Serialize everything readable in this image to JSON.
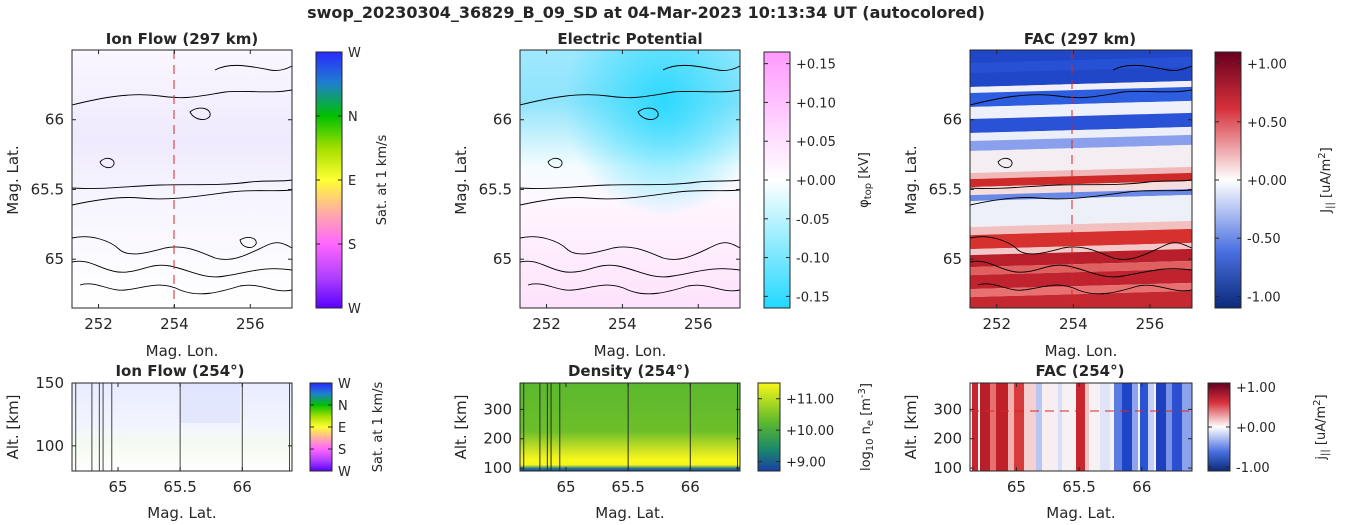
{
  "figure": {
    "title": "swop_20230304_36829_B_09_SD at 04-Mar-2023 10:13:34 UT (autocolored)"
  },
  "colors": {
    "contour": "#000000",
    "marker_line": "#d62728",
    "ion_flow_background": "#ffffff",
    "density_green": "#5bb82d",
    "density_yellow": "#f2f21e",
    "density_blue": "#1a3fa6"
  },
  "chart_data": [
    {
      "id": "ion-flow-map",
      "type": "heatmap",
      "title": "Ion Flow (297 km)",
      "xlabel": "Mag. Lon.",
      "ylabel": "Mag. Lat.",
      "xlim": [
        251.3,
        257.1
      ],
      "ylim": [
        64.65,
        66.5
      ],
      "xticks": [
        "252",
        "254",
        "256"
      ],
      "xtick_values": [
        252,
        254,
        256
      ],
      "yticks": [
        "65",
        "65.5",
        "66"
      ],
      "ytick_values": [
        65,
        65.5,
        66
      ],
      "marker_lon": 254,
      "colorbar": {
        "label": "Sat. at 1 km/s",
        "ticks": [
          "W",
          "N",
          "E",
          "S",
          "W"
        ],
        "colors": [
          "#2a2aff",
          "#00c000",
          "#ffff33",
          "#ff66ff",
          "#5a00ff"
        ]
      }
    },
    {
      "id": "potential-map",
      "type": "heatmap",
      "title": "Electric Potential",
      "xlabel": "Mag. Lon.",
      "ylabel": "Mag. Lat.",
      "xlim": [
        251.3,
        257.1
      ],
      "ylim": [
        64.65,
        66.5
      ],
      "xticks": [
        "252",
        "254",
        "256"
      ],
      "xtick_values": [
        252,
        254,
        256
      ],
      "yticks": [
        "65",
        "65.5",
        "66"
      ],
      "ytick_values": [
        65,
        65.5,
        66
      ],
      "colorbar": {
        "label": "φ_top [kV]",
        "label_main": "φ",
        "label_sub": "top",
        "label_unit": " [kV]",
        "range": [
          -0.165,
          0.165
        ],
        "ticks": [
          "+0.15",
          "+0.10",
          "+0.05",
          "+0.00",
          "-0.05",
          "-0.10",
          "-0.15"
        ],
        "tick_values": [
          0.15,
          0.1,
          0.05,
          0.0,
          -0.05,
          -0.1,
          -0.15
        ],
        "colors": [
          "#ff99ff",
          "#ffffff",
          "#33ddff"
        ]
      }
    },
    {
      "id": "fac-map",
      "type": "heatmap",
      "title": "FAC (297 km)",
      "xlabel": "Mag. Lon.",
      "ylabel": "Mag. Lat.",
      "xlim": [
        251.3,
        257.1
      ],
      "ylim": [
        64.65,
        66.5
      ],
      "xticks": [
        "252",
        "254",
        "256"
      ],
      "xtick_values": [
        252,
        254,
        256
      ],
      "yticks": [
        "65",
        "65.5",
        "66"
      ],
      "ytick_values": [
        65,
        65.5,
        66
      ],
      "marker_lon": 254,
      "colorbar": {
        "label": "J_|| [uA/m^2]",
        "label_main": "J",
        "label_sub": "||",
        "label_unit": " [uA/m",
        "label_sup": "2",
        "label_end": "]",
        "range": [
          -1.1,
          1.1
        ],
        "ticks": [
          "+1.00",
          "+0.50",
          "+0.00",
          "-0.50",
          "-1.00"
        ],
        "tick_values": [
          1.0,
          0.5,
          0.0,
          -0.5,
          -1.0
        ],
        "colors": [
          "#67001f",
          "#d6303a",
          "#ffffff",
          "#4a6fe0",
          "#0a2a7a"
        ]
      }
    },
    {
      "id": "ion-flow-profile",
      "type": "heatmap",
      "title": "Ion Flow (254°)",
      "xlabel": "Mag. Lat.",
      "ylabel": "Alt. [km]",
      "xlim": [
        64.63,
        66.4
      ],
      "ylim": [
        80,
        150
      ],
      "xticks": [
        "65",
        "65.5",
        "66"
      ],
      "xtick_values": [
        65,
        65.5,
        66
      ],
      "yticks": [
        "100",
        "150"
      ],
      "ytick_values": [
        100,
        150
      ],
      "vertical_lines_lat": [
        64.66,
        64.79,
        64.85,
        64.88,
        64.95,
        65.5,
        66.0,
        66.38
      ],
      "colorbar": {
        "label": "Sat. at 1 km/s",
        "ticks": [
          "W",
          "N",
          "E",
          "S",
          "W"
        ],
        "colors": [
          "#2a2aff",
          "#00c000",
          "#ffff33",
          "#ff66ff",
          "#5a00ff"
        ]
      }
    },
    {
      "id": "density-profile",
      "type": "heatmap",
      "title": "Density (254°)",
      "xlabel": "Mag. Lat.",
      "ylabel": "Alt. [km]",
      "xlim": [
        64.63,
        66.4
      ],
      "ylim": [
        90,
        390
      ],
      "xticks": [
        "65",
        "65.5",
        "66"
      ],
      "xtick_values": [
        65,
        65.5,
        66
      ],
      "yticks": [
        "100",
        "200",
        "300"
      ],
      "ytick_values": [
        100,
        200,
        300
      ],
      "vertical_lines_lat": [
        64.66,
        64.79,
        64.85,
        64.88,
        64.95,
        65.5,
        66.0,
        66.38
      ],
      "colorbar": {
        "label": "log10 n_e [m^-3]",
        "label_main": "log",
        "label_sub": "10",
        "label_mid": " n",
        "label_sub2": "e",
        "label_unit": " [m",
        "label_sup": "-3",
        "label_end": "]",
        "range": [
          8.7,
          11.5
        ],
        "ticks": [
          "+11.00",
          "+10.00",
          "+9.00"
        ],
        "tick_values": [
          11.0,
          10.0,
          9.0
        ],
        "colors": [
          "#f7f71a",
          "#5bb82d",
          "#1a3fa6"
        ]
      }
    },
    {
      "id": "fac-profile",
      "type": "heatmap",
      "title": "FAC (254°)",
      "xlabel": "Mag. Lat.",
      "ylabel": "Alt. [km]",
      "xlim": [
        64.63,
        66.4
      ],
      "ylim": [
        90,
        390
      ],
      "xticks": [
        "65",
        "65.5",
        "66"
      ],
      "xtick_values": [
        65,
        65.5,
        66
      ],
      "yticks": [
        "100",
        "200",
        "300"
      ],
      "ytick_values": [
        100,
        200,
        300
      ],
      "marker_alt": 297,
      "colorbar": {
        "label": "j_|| [uA/m^2]",
        "label_main": "j",
        "label_sub": "||",
        "label_unit": " [uA/m",
        "label_sup": "2",
        "label_end": "]",
        "range": [
          -1.1,
          1.1
        ],
        "ticks": [
          "+1.00",
          "+0.00",
          "-1.00"
        ],
        "tick_values": [
          1.0,
          0.0,
          -1.0
        ],
        "colors": [
          "#67001f",
          "#d6303a",
          "#ffffff",
          "#4a6fe0",
          "#0a2a7a"
        ]
      }
    }
  ]
}
